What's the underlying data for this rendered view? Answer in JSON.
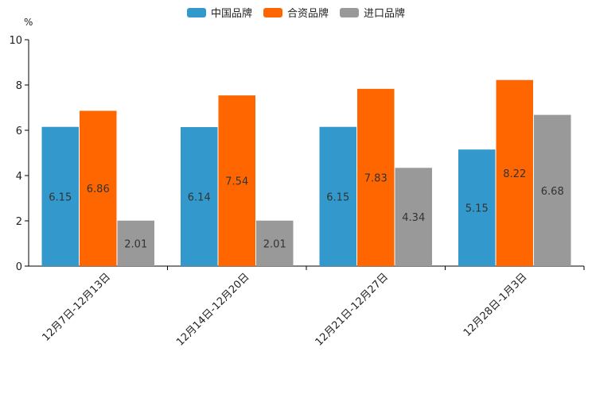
{
  "chart_data": {
    "type": "bar",
    "title": "",
    "unit": "%",
    "xlabel": "",
    "ylabel": "",
    "ylim": [
      0,
      10
    ],
    "yticks": [
      0,
      2,
      4,
      6,
      8,
      10
    ],
    "categories": [
      "12月7日-12月13日",
      "12月14日-12月20日",
      "12月21日-12月27日",
      "12月28日-1月3日"
    ],
    "series": [
      {
        "name": "中国品牌",
        "color": "#3399cc",
        "values": [
          6.15,
          6.14,
          6.15,
          5.15
        ],
        "labels": [
          "6.15",
          "6.14",
          "6.15",
          "5.15"
        ]
      },
      {
        "name": "合资品牌",
        "color": "#ff6600",
        "values": [
          6.86,
          7.54,
          7.83,
          8.22
        ],
        "labels": [
          "6.86",
          "7.54",
          "7.83",
          "8.22"
        ]
      },
      {
        "name": "进口品牌",
        "color": "#999999",
        "values": [
          2.01,
          2.01,
          4.34,
          6.68
        ],
        "labels": [
          "2.01",
          "2.01",
          "4.34",
          "6.68"
        ]
      }
    ],
    "legend_position": "top-center",
    "grid": false
  }
}
